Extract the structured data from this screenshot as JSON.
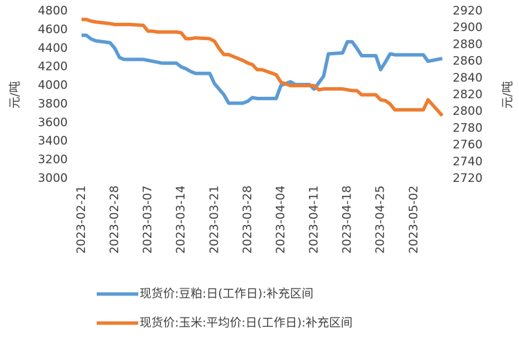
{
  "chart_data": {
    "type": "line",
    "y_label": "元/吨",
    "y2_label": "元/吨",
    "x": [
      "2023-02-21",
      "2023-02-22",
      "2023-02-23",
      "2023-02-24",
      "2023-02-27",
      "2023-02-28",
      "2023-03-01",
      "2023-03-02",
      "2023-03-03",
      "2023-03-06",
      "2023-03-07",
      "2023-03-08",
      "2023-03-09",
      "2023-03-10",
      "2023-03-13",
      "2023-03-14",
      "2023-03-15",
      "2023-03-16",
      "2023-03-17",
      "2023-03-20",
      "2023-03-21",
      "2023-03-22",
      "2023-03-23",
      "2023-03-24",
      "2023-03-27",
      "2023-03-28",
      "2023-03-29",
      "2023-03-30",
      "2023-03-31",
      "2023-04-03",
      "2023-04-04",
      "2023-04-05",
      "2023-04-06",
      "2023-04-07",
      "2023-04-10",
      "2023-04-11",
      "2023-04-12",
      "2023-04-13",
      "2023-04-14",
      "2023-04-17",
      "2023-04-18",
      "2023-04-19",
      "2023-04-20",
      "2023-04-21",
      "2023-04-24",
      "2023-04-25",
      "2023-04-26",
      "2023-04-27",
      "2023-04-28",
      "2023-05-04",
      "2023-05-05",
      "2023-05-08"
    ],
    "series": [
      {
        "name": "现货价:豆粕:日(工作日):补充区间",
        "color": "#5b9bd5",
        "values": [
          4540,
          4540,
          4500,
          4480,
          4460,
          4400,
          4300,
          4280,
          4280,
          4280,
          4270,
          4260,
          4250,
          4240,
          4240,
          4200,
          4180,
          4150,
          4130,
          4130,
          4020,
          3960,
          3900,
          3810,
          3810,
          3830,
          3870,
          3860,
          3860,
          3860,
          4000,
          4020,
          4040,
          4010,
          4010,
          3960,
          4030,
          4100,
          4340,
          4350,
          4470,
          4470,
          4400,
          4320,
          4320,
          4170,
          4250,
          4340,
          4330,
          4330,
          4260,
          4290
        ]
      },
      {
        "name": "现货价:玉米:平均价:日(工作日):补充区间",
        "color": "#ed7d31",
        "axis": "y2",
        "values": [
          2910,
          2910,
          2908,
          2907,
          2905,
          2904,
          2904,
          2904,
          2904,
          2903,
          2896,
          2896,
          2895,
          2895,
          2895,
          2894,
          2887,
          2887,
          2888,
          2887,
          2884,
          2875,
          2868,
          2868,
          2861,
          2858,
          2856,
          2850,
          2850,
          2844,
          2835,
          2833,
          2831,
          2831,
          2831,
          2831,
          2826,
          2827,
          2827,
          2827,
          2826,
          2825,
          2825,
          2820,
          2820,
          2814,
          2813,
          2809,
          2802,
          2802,
          2814,
          2795
        ]
      }
    ],
    "xlim": [
      "2023-02-21",
      "2023-05-08"
    ],
    "xticks": [
      "2023-02-21",
      "2023-02-28",
      "2023-03-07",
      "2023-03-14",
      "2023-03-21",
      "2023-03-28",
      "2023-04-04",
      "2023-04-11",
      "2023-04-18",
      "2023-04-25",
      "2023-05-02"
    ],
    "ylim": [
      3000,
      4800
    ],
    "yticks": [
      3000,
      3200,
      3400,
      3600,
      3800,
      4000,
      4200,
      4400,
      4600,
      4800
    ],
    "y2lim": [
      2720,
      2920
    ],
    "y2ticks": [
      2720,
      2740,
      2760,
      2780,
      2800,
      2820,
      2840,
      2860,
      2880,
      2900,
      2920
    ],
    "legend": "bottom"
  }
}
